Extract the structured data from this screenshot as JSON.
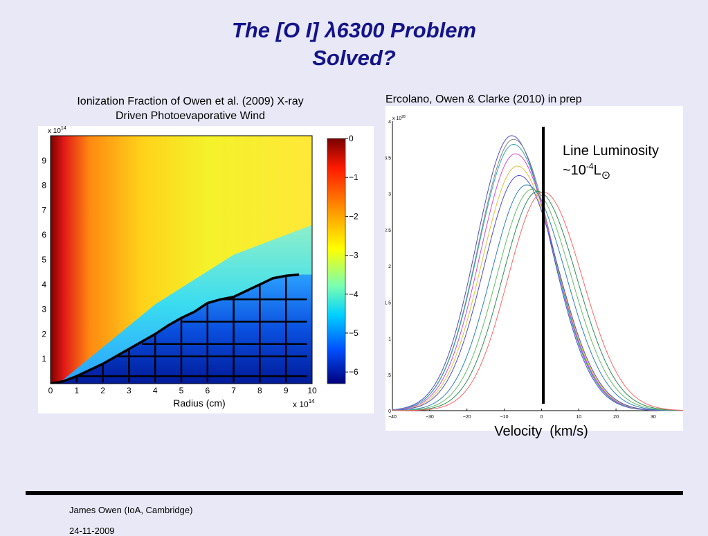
{
  "slide": {
    "title_line1": "The [O I] λ6300 Problem",
    "title_line2": "Solved?",
    "left_caption_line1": "Ionization Fraction of Owen et al. (2009) X-ray",
    "left_caption_line2": "Driven Photoevaporative Wind",
    "right_caption": "Ercolano, Owen & Clarke (2010) in prep",
    "footer_author": "James Owen (IoA, Cambridge)",
    "footer_date": "24-11-2009"
  },
  "chart_data": [
    {
      "type": "heatmap",
      "title": "",
      "xlabel": "Radius (cm)",
      "x_scale_label": "x 10",
      "x_scale_exp": "14",
      "y_scale_label": "x 10",
      "y_scale_exp": "14",
      "x_ticks": [
        "0",
        "1",
        "2",
        "3",
        "4",
        "5",
        "6",
        "7",
        "8",
        "9",
        "10"
      ],
      "y_ticks": [
        "1",
        "2",
        "3",
        "4",
        "5",
        "6",
        "7",
        "8",
        "9"
      ],
      "xlim": [
        0,
        10
      ],
      "ylim": [
        0,
        10
      ],
      "colorbar_ticks": [
        "0",
        "−1",
        "−2",
        "−3",
        "−4",
        "−5",
        "−6"
      ],
      "colorbar_range": [
        -6.3,
        0
      ],
      "colormap": "jet",
      "boundary_curve": [
        [
          0,
          0
        ],
        [
          0.5,
          0.1
        ],
        [
          1,
          0.3
        ],
        [
          1.5,
          0.55
        ],
        [
          2,
          0.8
        ],
        [
          2.5,
          1.1
        ],
        [
          3,
          1.4
        ],
        [
          3.5,
          1.7
        ],
        [
          4,
          2.0
        ],
        [
          4.5,
          2.35
        ],
        [
          5,
          2.65
        ],
        [
          5.5,
          2.9
        ],
        [
          6,
          3.25
        ],
        [
          6.5,
          3.4
        ],
        [
          7,
          3.5
        ],
        [
          7.5,
          3.75
        ],
        [
          8,
          4.0
        ],
        [
          8.5,
          4.25
        ],
        [
          9,
          4.35
        ],
        [
          9.5,
          4.4
        ]
      ],
      "grid_vertical_x": [
        1,
        2,
        3,
        4,
        5,
        6,
        7,
        8,
        9
      ],
      "grid_horizontal_y": [
        0.3,
        1.1,
        1.6,
        2.5,
        3.4
      ]
    },
    {
      "type": "line",
      "xlabel": "Velocity  (km/s)",
      "ylabel": "",
      "y_scale_label": "x 10",
      "y_scale_exp": "28",
      "x_ticks": [
        "−40",
        "−30",
        "−20",
        "−10",
        "0",
        "10",
        "20",
        "30"
      ],
      "y_ticks": [
        "0",
        ".5",
        "1",
        "1.5",
        "2",
        "2.5",
        "3",
        "3.5",
        "4"
      ],
      "xlim": [
        -40,
        38
      ],
      "ylim": [
        0,
        4
      ],
      "annotation_line1": "Line Luminosity",
      "annotation_line2_prefix": "~10",
      "annotation_exp": "-4",
      "annotation_suffix": "L",
      "annotation_symbol": "⊙",
      "vertical_marker_x": 0.5,
      "series": [
        {
          "peak_x": -8,
          "peak_y": 3.8,
          "color": "#4b4bd6"
        },
        {
          "peak_x": -7.5,
          "peak_y": 3.75,
          "color": "#888888"
        },
        {
          "peak_x": -7.5,
          "peak_y": 3.68,
          "color": "#2fa7a7"
        },
        {
          "peak_x": -7,
          "peak_y": 3.55,
          "color": "#d04cd0"
        },
        {
          "peak_x": -6.5,
          "peak_y": 3.38,
          "color": "#e0c23a"
        },
        {
          "peak_x": -6,
          "peak_y": 3.25,
          "color": "#4b4bd6"
        },
        {
          "peak_x": -4,
          "peak_y": 3.12,
          "color": "#2f7fc0"
        },
        {
          "peak_x": -2.5,
          "peak_y": 3.06,
          "color": "#66bb66"
        },
        {
          "peak_x": -1,
          "peak_y": 3.03,
          "color": "#2e8b57"
        },
        {
          "peak_x": 0.5,
          "peak_y": 3.02,
          "color": "#ff6666"
        }
      ]
    }
  ]
}
